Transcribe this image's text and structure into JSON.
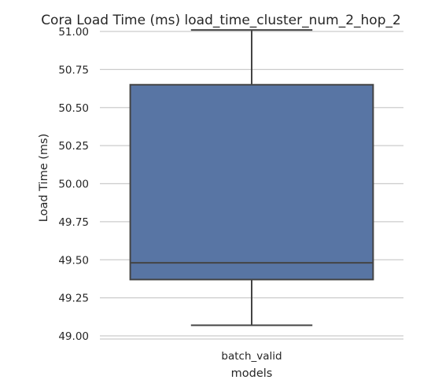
{
  "chart_data": {
    "type": "box",
    "title": "Cora Load Time (ms) load_time_cluster_num_2_hop_2",
    "xlabel": "models",
    "ylabel": "Load Time (ms)",
    "categories": [
      "batch_valid"
    ],
    "ylim": [
      49.0,
      51.0
    ],
    "yticks": [
      49.0,
      49.25,
      49.5,
      49.75,
      50.0,
      50.25,
      50.5,
      50.75,
      51.0
    ],
    "ytick_labels": [
      "49.00",
      "49.25",
      "49.50",
      "49.75",
      "50.00",
      "50.25",
      "50.50",
      "50.75",
      "51.00"
    ],
    "grid": true,
    "series": [
      {
        "category": "batch_valid",
        "min": 49.07,
        "q1": 49.37,
        "median": 49.48,
        "q3": 50.65,
        "max": 51.01,
        "color": "#5875a4"
      }
    ]
  }
}
